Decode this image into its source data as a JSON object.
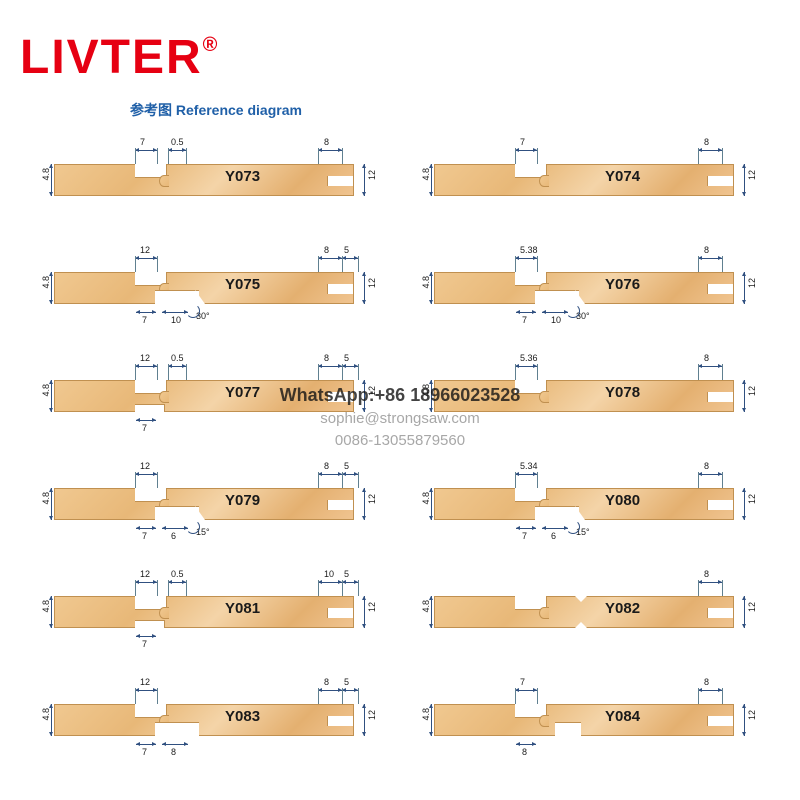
{
  "brand": "LIVTER",
  "reg": "®",
  "title": "参考图 Reference diagram",
  "watermark": {
    "l1": "WhatsApp:+86 18966023528",
    "l2": "sophie@strongsaw.com",
    "l3": "0086-13055879560"
  },
  "profiles": [
    {
      "id": "Y073",
      "top_dims": [
        "7",
        "0.5",
        "8"
      ],
      "left_v": "4.8",
      "right_v": "12",
      "bottom_dims": [],
      "shape": "std",
      "angle": ""
    },
    {
      "id": "Y074",
      "top_dims": [
        "7",
        "",
        "8"
      ],
      "left_v": "4.8",
      "right_v": "12",
      "bottom_dims": [],
      "shape": "std",
      "angle": ""
    },
    {
      "id": "Y075",
      "top_dims": [
        "12",
        "",
        "8",
        "5"
      ],
      "left_v": "4.8",
      "right_v": "12",
      "bottom_dims": [
        "7",
        "10"
      ],
      "shape": "notch30",
      "angle": "30°"
    },
    {
      "id": "Y076",
      "top_dims": [
        "5.38",
        "",
        "8"
      ],
      "left_v": "4.8",
      "right_v": "12",
      "bottom_dims": [
        "7",
        "10"
      ],
      "shape": "notch30",
      "angle": "30°"
    },
    {
      "id": "Y077",
      "top_dims": [
        "12",
        "0.5",
        "8",
        "5"
      ],
      "left_v": "4.8",
      "right_v": "12",
      "bottom_dims": [
        "7"
      ],
      "shape": "std2",
      "angle": ""
    },
    {
      "id": "Y078",
      "top_dims": [
        "5.36",
        "",
        "8"
      ],
      "left_v": "4.8",
      "right_v": "12",
      "bottom_dims": [],
      "shape": "std",
      "angle": ""
    },
    {
      "id": "Y079",
      "top_dims": [
        "12",
        "",
        "8",
        "5"
      ],
      "left_v": "4.8",
      "right_v": "12",
      "bottom_dims": [
        "7",
        "6"
      ],
      "shape": "notch15",
      "angle": "15°"
    },
    {
      "id": "Y080",
      "top_dims": [
        "5.34",
        "",
        "8"
      ],
      "left_v": "4.8",
      "right_v": "12",
      "bottom_dims": [
        "7",
        "6"
      ],
      "shape": "notch15",
      "angle": "15°"
    },
    {
      "id": "Y081",
      "top_dims": [
        "12",
        "0.5",
        "10",
        "5"
      ],
      "left_v": "4.8",
      "right_v": "12",
      "bottom_dims": [
        "7"
      ],
      "shape": "std2",
      "angle": ""
    },
    {
      "id": "Y082",
      "top_dims": [
        "",
        "",
        "8"
      ],
      "left_v": "4.8",
      "right_v": "12",
      "bottom_dims": [],
      "shape": "vee",
      "angle": ""
    },
    {
      "id": "Y083",
      "top_dims": [
        "12",
        "",
        "8",
        "5"
      ],
      "left_v": "4.8",
      "right_v": "12",
      "bottom_dims": [
        "7",
        "8"
      ],
      "shape": "notch",
      "angle": ""
    },
    {
      "id": "Y084",
      "top_dims": [
        "7",
        "",
        "8"
      ],
      "left_v": "4.8",
      "right_v": "12",
      "bottom_dims": [
        "8"
      ],
      "shape": "dropnotch",
      "angle": ""
    }
  ],
  "colors": {
    "brand": "#e60012",
    "title": "#2060a8",
    "dim_line": "#305080",
    "text": "#1a1a1a",
    "wood1": "#f0c890",
    "wood2": "#e8b878",
    "border": "#c09050"
  }
}
